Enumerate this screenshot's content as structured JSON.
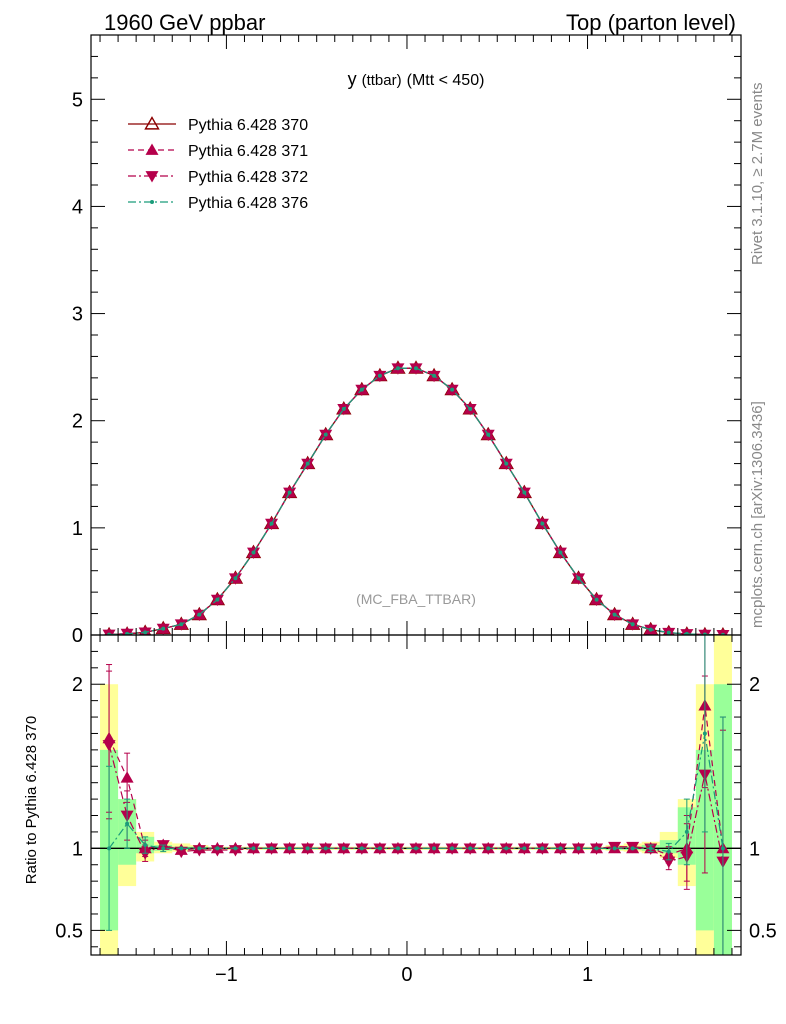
{
  "header": {
    "left": "1960 GeV ppbar",
    "right": "Top (parton level)"
  },
  "side_labels": {
    "top": "Rivet 3.1.10, ≥ 2.7M events",
    "bottom": "mcplots.cern.ch [arXiv:1306.3436]"
  },
  "chart_data": [
    {
      "type": "line",
      "title": "y (ttbar) (Mtt < 450)",
      "title_main": "y",
      "title_sub": "(ttbar)",
      "title_tail": "(Mtt < 450)",
      "watermark": "(MC_FBA_TTBAR)",
      "xlim": [
        -1.75,
        1.85
      ],
      "ylim": [
        0,
        5.6
      ],
      "x_ticks": [
        -1,
        0,
        1
      ],
      "x_tick_labels": [
        "−1",
        "0",
        "1"
      ],
      "y_ticks": [
        0,
        1,
        2,
        3,
        4,
        5
      ],
      "y_tick_labels": [
        "0",
        "1",
        "2",
        "3",
        "4",
        "5"
      ],
      "legend_position": "top-left",
      "x": [
        -1.65,
        -1.55,
        -1.45,
        -1.35,
        -1.25,
        -1.15,
        -1.05,
        -0.95,
        -0.85,
        -0.75,
        -0.65,
        -0.55,
        -0.45,
        -0.35,
        -0.25,
        -0.15,
        -0.05,
        0.05,
        0.15,
        0.25,
        0.35,
        0.45,
        0.55,
        0.65,
        0.75,
        0.85,
        0.95,
        1.05,
        1.15,
        1.25,
        1.35,
        1.45,
        1.55,
        1.65,
        1.75
      ],
      "series": [
        {
          "name": "Pythia 6.428 370",
          "color": "#8b0000",
          "marker": "triangle-open",
          "line": "solid",
          "values": [
            0.003,
            0.009,
            0.025,
            0.06,
            0.1,
            0.19,
            0.33,
            0.53,
            0.77,
            1.04,
            1.33,
            1.6,
            1.87,
            2.11,
            2.29,
            2.42,
            2.49,
            2.49,
            2.42,
            2.29,
            2.11,
            1.87,
            1.6,
            1.33,
            1.04,
            0.77,
            0.53,
            0.33,
            0.19,
            0.1,
            0.05,
            0.022,
            0.009,
            0.003,
            0.001
          ]
        },
        {
          "name": "Pythia 6.428 371",
          "color": "#b5004b",
          "marker": "triangle-up",
          "line": "dashed",
          "values": [
            0.005,
            0.013,
            0.025,
            0.06,
            0.1,
            0.19,
            0.33,
            0.53,
            0.77,
            1.04,
            1.33,
            1.6,
            1.87,
            2.11,
            2.29,
            2.42,
            2.49,
            2.49,
            2.42,
            2.29,
            2.11,
            1.87,
            1.6,
            1.33,
            1.04,
            0.77,
            0.53,
            0.33,
            0.19,
            0.1,
            0.05,
            0.021,
            0.009,
            0.005,
            0.001
          ]
        },
        {
          "name": "Pythia 6.428 372",
          "color": "#b5004b",
          "marker": "triangle-down",
          "line": "dashdot",
          "values": [
            0.005,
            0.013,
            0.025,
            0.06,
            0.1,
            0.19,
            0.33,
            0.53,
            0.77,
            1.04,
            1.33,
            1.6,
            1.87,
            2.11,
            2.29,
            2.42,
            2.49,
            2.49,
            2.42,
            2.29,
            2.11,
            1.87,
            1.6,
            1.33,
            1.04,
            0.77,
            0.53,
            0.33,
            0.19,
            0.1,
            0.05,
            0.021,
            0.009,
            0.004,
            0.001
          ]
        },
        {
          "name": "Pythia 6.428 376",
          "color": "#1a9c7a",
          "marker": "dot",
          "line": "dashdot",
          "values": [
            0.003,
            0.01,
            0.025,
            0.06,
            0.1,
            0.19,
            0.33,
            0.53,
            0.77,
            1.04,
            1.33,
            1.6,
            1.87,
            2.11,
            2.29,
            2.42,
            2.49,
            2.49,
            2.42,
            2.29,
            2.11,
            1.87,
            1.6,
            1.33,
            1.04,
            0.77,
            0.53,
            0.33,
            0.19,
            0.1,
            0.05,
            0.022,
            0.01,
            0.005,
            0.001
          ]
        }
      ]
    },
    {
      "type": "line",
      "ylabel": "Ratio to Pythia 6.428 370",
      "xlim": [
        -1.75,
        1.85
      ],
      "ylim": [
        0.35,
        2.3
      ],
      "x_ticks": [
        -1,
        0,
        1
      ],
      "x_tick_labels": [
        "−1",
        "0",
        "1"
      ],
      "y_ticks": [
        0.5,
        1,
        2
      ],
      "y_tick_labels": [
        "0.5",
        "1",
        "2"
      ],
      "band_colors": {
        "inner": "#99ff99",
        "outer": "#ffff99"
      },
      "band_inner": [
        [
          0.5,
          1.6
        ],
        [
          0.9,
          1.3
        ],
        [
          0.97,
          1.07
        ],
        [
          0.985,
          1.02
        ],
        [
          0.99,
          1.01
        ],
        [
          0.99,
          1.01
        ],
        [
          0.995,
          1.005
        ],
        [
          0.995,
          1.005
        ],
        [
          0.995,
          1.005
        ],
        [
          0.995,
          1.005
        ],
        [
          0.995,
          1.005
        ],
        [
          0.995,
          1.005
        ],
        [
          0.995,
          1.005
        ],
        [
          0.995,
          1.005
        ],
        [
          0.995,
          1.005
        ],
        [
          0.995,
          1.005
        ],
        [
          0.995,
          1.005
        ],
        [
          0.995,
          1.005
        ],
        [
          0.995,
          1.005
        ],
        [
          0.995,
          1.005
        ],
        [
          0.995,
          1.005
        ],
        [
          0.995,
          1.005
        ],
        [
          0.995,
          1.005
        ],
        [
          0.995,
          1.005
        ],
        [
          0.995,
          1.005
        ],
        [
          0.995,
          1.005
        ],
        [
          0.995,
          1.005
        ],
        [
          0.995,
          1.005
        ],
        [
          0.99,
          1.01
        ],
        [
          0.99,
          1.01
        ],
        [
          0.985,
          1.02
        ],
        [
          0.97,
          1.05
        ],
        [
          0.9,
          1.25
        ],
        [
          0.5,
          1.6
        ],
        [
          0.35,
          2.0
        ]
      ],
      "band_outer": [
        [
          0.35,
          2.0
        ],
        [
          0.77,
          1.3
        ],
        [
          0.92,
          1.1
        ],
        [
          0.97,
          1.04
        ],
        [
          0.98,
          1.03
        ],
        [
          0.985,
          1.02
        ],
        [
          0.99,
          1.01
        ],
        [
          0.99,
          1.01
        ],
        [
          0.99,
          1.01
        ],
        [
          0.99,
          1.01
        ],
        [
          0.99,
          1.01
        ],
        [
          0.99,
          1.01
        ],
        [
          0.99,
          1.01
        ],
        [
          0.99,
          1.01
        ],
        [
          0.99,
          1.01
        ],
        [
          0.99,
          1.01
        ],
        [
          0.99,
          1.01
        ],
        [
          0.99,
          1.01
        ],
        [
          0.99,
          1.01
        ],
        [
          0.99,
          1.01
        ],
        [
          0.99,
          1.01
        ],
        [
          0.99,
          1.01
        ],
        [
          0.99,
          1.01
        ],
        [
          0.99,
          1.01
        ],
        [
          0.99,
          1.01
        ],
        [
          0.99,
          1.01
        ],
        [
          0.99,
          1.01
        ],
        [
          0.99,
          1.01
        ],
        [
          0.985,
          1.02
        ],
        [
          0.98,
          1.03
        ],
        [
          0.97,
          1.04
        ],
        [
          0.94,
          1.1
        ],
        [
          0.77,
          1.3
        ],
        [
          0.35,
          2.0
        ],
        [
          0.35,
          2.3
        ]
      ],
      "series": [
        {
          "name": "Pythia 6.428 371",
          "color": "#b5004b",
          "marker": "triangle-up",
          "line": "dashed",
          "values": [
            1.67,
            1.43,
            1.0,
            1.02,
            0.99,
            1.0,
            1.0,
            1.0,
            1.0,
            1.0,
            1.0,
            1.0,
            1.0,
            1.0,
            1.0,
            1.0,
            1.0,
            1.0,
            1.0,
            1.0,
            1.0,
            1.0,
            1.0,
            1.0,
            1.0,
            1.0,
            1.0,
            1.0,
            1.0,
            1.0,
            1.0,
            0.96,
            1.0,
            1.87,
            1.0
          ],
          "errors": [
            0.45,
            0.15,
            0.05,
            0.02,
            0.01,
            0.01,
            0.005,
            0.005,
            0.005,
            0.005,
            0.005,
            0.005,
            0.005,
            0.005,
            0.005,
            0.005,
            0.005,
            0.005,
            0.005,
            0.005,
            0.005,
            0.005,
            0.005,
            0.005,
            0.005,
            0.005,
            0.005,
            0.005,
            0.01,
            0.01,
            0.02,
            0.05,
            0.2,
            0.5,
            0.8
          ]
        },
        {
          "name": "Pythia 6.428 372",
          "color": "#b5004b",
          "marker": "triangle-down",
          "line": "dashdot",
          "values": [
            1.63,
            1.2,
            0.97,
            1.02,
            0.98,
            0.99,
            0.99,
            0.99,
            1.0,
            1.0,
            1.0,
            1.0,
            1.0,
            1.0,
            1.0,
            1.0,
            1.0,
            1.0,
            1.0,
            1.0,
            1.0,
            1.0,
            1.0,
            1.0,
            1.0,
            1.0,
            1.0,
            1.0,
            1.01,
            1.01,
            1.0,
            0.92,
            0.95,
            1.45,
            0.92
          ],
          "errors": [
            0.45,
            0.15,
            0.05,
            0.02,
            0.01,
            0.01,
            0.005,
            0.005,
            0.005,
            0.005,
            0.005,
            0.005,
            0.005,
            0.005,
            0.005,
            0.005,
            0.005,
            0.005,
            0.005,
            0.005,
            0.005,
            0.005,
            0.005,
            0.005,
            0.005,
            0.005,
            0.005,
            0.005,
            0.01,
            0.01,
            0.02,
            0.05,
            0.2,
            0.6,
            0.8
          ]
        },
        {
          "name": "Pythia 6.428 376",
          "color": "#1a9c7a",
          "marker": "dot",
          "line": "dashdot",
          "values": [
            1.0,
            1.15,
            1.02,
            1.0,
            1.0,
            1.0,
            1.0,
            1.0,
            1.0,
            1.0,
            1.0,
            1.0,
            1.0,
            1.0,
            1.0,
            1.0,
            1.0,
            1.0,
            1.0,
            1.0,
            1.0,
            1.0,
            1.0,
            1.0,
            1.0,
            1.0,
            1.0,
            1.0,
            1.0,
            1.0,
            1.0,
            0.98,
            1.1,
            1.7,
            1.0
          ],
          "errors": [
            0.5,
            0.15,
            0.05,
            0.02,
            0.01,
            0.01,
            0.005,
            0.005,
            0.005,
            0.005,
            0.005,
            0.005,
            0.005,
            0.005,
            0.005,
            0.005,
            0.005,
            0.005,
            0.005,
            0.005,
            0.005,
            0.005,
            0.005,
            0.005,
            0.005,
            0.005,
            0.005,
            0.005,
            0.01,
            0.01,
            0.02,
            0.05,
            0.2,
            0.6,
            0.8
          ]
        }
      ]
    }
  ]
}
